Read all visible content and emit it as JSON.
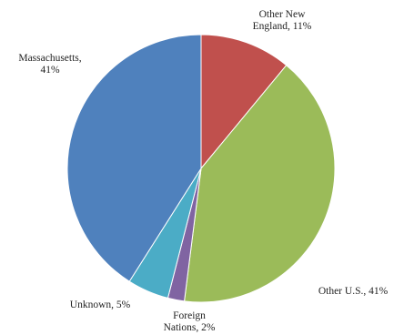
{
  "chart_data": {
    "type": "pie",
    "start_angle_deg": 0,
    "direction": "clockwise",
    "slices": [
      {
        "label_lines": [
          "Other New",
          "England, 11%"
        ],
        "category": "Other New England",
        "value": 11,
        "color": "#c0504d"
      },
      {
        "label_lines": [
          "Other U.S., 41%"
        ],
        "category": "Other U.S.",
        "value": 41,
        "color": "#9bbb59"
      },
      {
        "label_lines": [
          "Foreign",
          "Nations, 2%"
        ],
        "category": "Foreign Nations",
        "value": 2,
        "color": "#8064a2"
      },
      {
        "label_lines": [
          "Unknown, 5%"
        ],
        "category": "Unknown",
        "value": 5,
        "color": "#4bacc6"
      },
      {
        "label_lines": [
          "Massachusetts,",
          "41%"
        ],
        "category": "Massachusetts",
        "value": 41,
        "color": "#4f81bd"
      }
    ]
  }
}
